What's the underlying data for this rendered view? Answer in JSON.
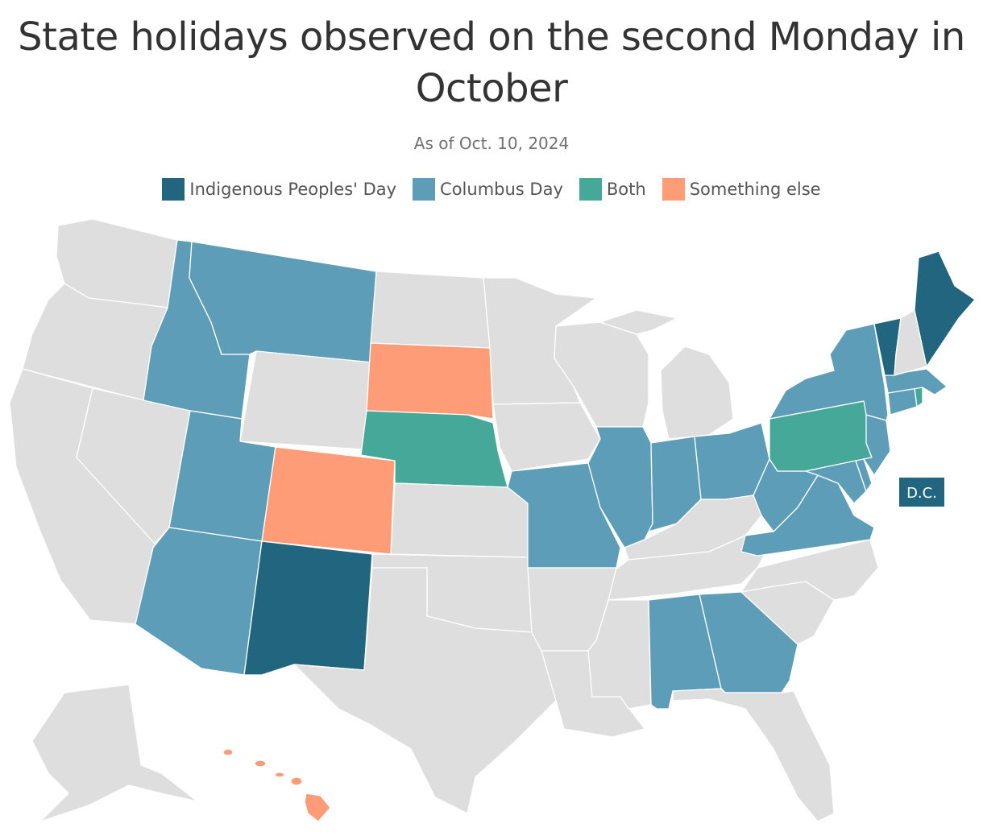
{
  "title": "State holidays observed on the second Monday in October",
  "subtitle": "As of Oct. 10, 2024",
  "colors": {
    "indigenous": "#21667e",
    "columbus": "#5e9db7",
    "both": "#46a899",
    "other": "#ff9c78",
    "none": "#dedede"
  },
  "legend": [
    {
      "label": "Indigenous Peoples' Day",
      "category": "indigenous"
    },
    {
      "label": "Columbus Day",
      "category": "columbus"
    },
    {
      "label": "Both",
      "category": "both"
    },
    {
      "label": "Something else",
      "category": "other"
    }
  ],
  "dc_label": "D.C.",
  "map_data": {
    "indigenous": [
      "Maine",
      "Vermont",
      "New Mexico",
      "District of Columbia"
    ],
    "columbus": [
      "Montana",
      "Idaho",
      "Utah",
      "Arizona",
      "Missouri",
      "Illinois",
      "Indiana",
      "Ohio",
      "West Virginia",
      "Virginia",
      "Maryland",
      "Delaware",
      "New Jersey",
      "New York",
      "Connecticut",
      "Massachusetts",
      "Alabama",
      "Georgia"
    ],
    "both": [
      "Nebraska",
      "Pennsylvania",
      "Rhode Island"
    ],
    "other": [
      "South Dakota",
      "Colorado",
      "Hawaii"
    ],
    "none": [
      "Washington",
      "Oregon",
      "California",
      "Nevada",
      "Wyoming",
      "North Dakota",
      "Minnesota",
      "Iowa",
      "Wisconsin",
      "Michigan",
      "Kansas",
      "Oklahoma",
      "Texas",
      "Arkansas",
      "Louisiana",
      "Mississippi",
      "Tennessee",
      "Kentucky",
      "North Carolina",
      "South Carolina",
      "Florida",
      "New Hampshire",
      "Alaska"
    ]
  }
}
